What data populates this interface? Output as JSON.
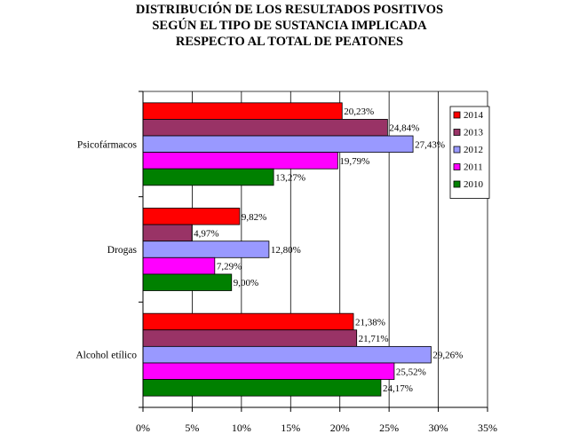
{
  "chart_data": {
    "type": "bar",
    "orientation": "horizontal",
    "title_lines": [
      "DISTRIBUCIÓN DE LOS RESULTADOS POSITIVOS",
      "SEGÚN EL TIPO DE SUSTANCIA IMPLICADA",
      "RESPECTO AL TOTAL DE PEATONES"
    ],
    "categories": [
      "Psicofármacos",
      "Drogas",
      "Alcohol etílico"
    ],
    "series": [
      {
        "name": "2014",
        "color": "#ff0000",
        "values": [
          20.23,
          9.82,
          21.38
        ],
        "labels": [
          "20,23%",
          "9,82%",
          "21,38%"
        ]
      },
      {
        "name": "2013",
        "color": "#993366",
        "values": [
          24.84,
          4.97,
          21.71
        ],
        "labels": [
          "24,84%",
          "4,97%",
          "21,71%"
        ]
      },
      {
        "name": "2012",
        "color": "#9999ff",
        "values": [
          27.43,
          12.8,
          29.26
        ],
        "labels": [
          "27,43%",
          "12,80%",
          "29,26%"
        ]
      },
      {
        "name": "2011",
        "color": "#ff00ff",
        "values": [
          19.79,
          7.29,
          25.52
        ],
        "labels": [
          "19,79%",
          "7,29%",
          "25,52%"
        ]
      },
      {
        "name": "2010",
        "color": "#008000",
        "values": [
          13.27,
          9.0,
          24.17
        ],
        "labels": [
          "13,27%",
          "9,00%",
          "24,17%"
        ]
      }
    ],
    "xlim": [
      0,
      35
    ],
    "xticks": [
      0,
      5,
      10,
      15,
      20,
      25,
      30,
      35
    ],
    "xtick_labels": [
      "0%",
      "5%",
      "10%",
      "15%",
      "20%",
      "25%",
      "30%",
      "35%"
    ],
    "grid": "vertical",
    "legend_position": "top-right"
  }
}
